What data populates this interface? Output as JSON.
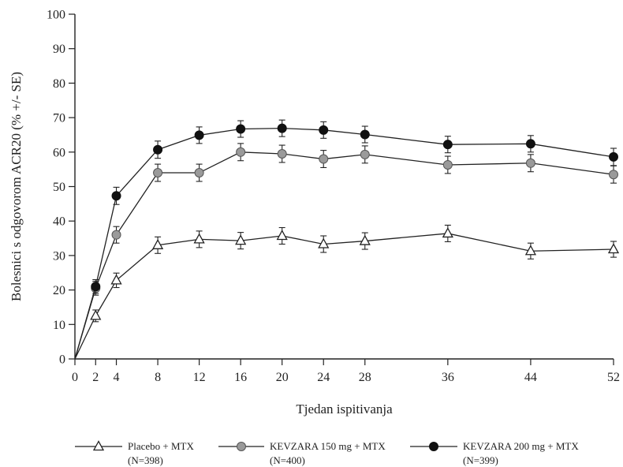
{
  "chart_data": {
    "type": "line",
    "title": "",
    "xlabel": "Tjedan ispitivanja",
    "ylabel": "Bolesnici s odgovorom ACR20 (% +/- SE)",
    "xlim": [
      0,
      52
    ],
    "ylim": [
      0,
      100
    ],
    "x_ticks": [
      0,
      2,
      4,
      8,
      12,
      16,
      20,
      24,
      28,
      36,
      44,
      52
    ],
    "y_ticks": [
      0,
      10,
      20,
      30,
      40,
      50,
      60,
      70,
      80,
      90,
      100
    ],
    "legend_position": "bottom",
    "series": [
      {
        "name": "Placebo + MTX",
        "n_label": "(N=398)",
        "marker": "open-triangle",
        "color": "#222222",
        "x": [
          0,
          2,
          4,
          8,
          12,
          16,
          20,
          24,
          28,
          36,
          44,
          52
        ],
        "values": [
          0,
          12.5,
          22.8,
          33.0,
          34.7,
          34.3,
          35.7,
          33.3,
          34.2,
          36.4,
          31.3,
          31.8
        ],
        "se": [
          0,
          1.7,
          2.1,
          2.4,
          2.4,
          2.4,
          2.4,
          2.4,
          2.4,
          2.4,
          2.3,
          2.3
        ]
      },
      {
        "name": "KEVZARA 150 mg + MTX",
        "n_label": "(N=400)",
        "marker": "grey-circle",
        "color": "#9a9a9a",
        "x": [
          0,
          2,
          4,
          8,
          12,
          16,
          20,
          24,
          28,
          36,
          44,
          52
        ],
        "values": [
          0,
          20.5,
          36.0,
          54.0,
          54.0,
          60.0,
          59.5,
          58.0,
          59.3,
          56.3,
          56.8,
          53.5
        ],
        "se": [
          0,
          2.0,
          2.4,
          2.5,
          2.5,
          2.5,
          2.5,
          2.5,
          2.5,
          2.5,
          2.5,
          2.5
        ]
      },
      {
        "name": "KEVZARA 200 mg + MTX",
        "n_label": "(N=399)",
        "marker": "black-circle",
        "color": "#111111",
        "x": [
          0,
          2,
          4,
          8,
          12,
          16,
          20,
          24,
          28,
          36,
          44,
          52
        ],
        "values": [
          0,
          21.0,
          47.3,
          60.7,
          64.9,
          66.7,
          66.9,
          66.4,
          65.1,
          62.2,
          62.4,
          58.6
        ],
        "se": [
          0,
          2.0,
          2.5,
          2.5,
          2.4,
          2.4,
          2.4,
          2.4,
          2.4,
          2.4,
          2.4,
          2.5
        ]
      }
    ]
  }
}
